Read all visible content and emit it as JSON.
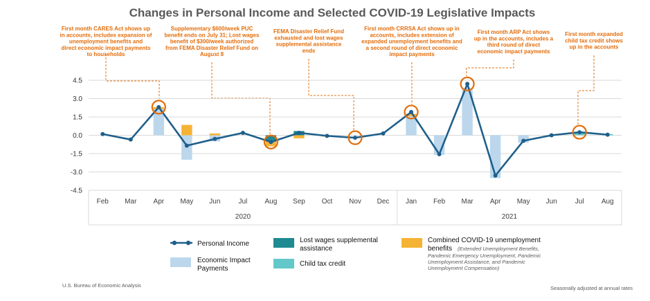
{
  "chart_data": {
    "type": "bar",
    "title": "Changes in Personal Income and Selected COVID-19 Legislative Impacts",
    "categories": [
      "Feb",
      "Mar",
      "Apr",
      "May",
      "Jun",
      "Jul",
      "Aug",
      "Sep",
      "Oct",
      "Nov",
      "Dec",
      "Jan",
      "Feb",
      "Mar",
      "Apr",
      "May",
      "Jun",
      "Jul",
      "Aug"
    ],
    "year_groups": [
      {
        "label": "2020",
        "start": 0,
        "end": 10
      },
      {
        "label": "2021",
        "start": 11,
        "end": 18
      }
    ],
    "ylim": [
      -4.5,
      4.5
    ],
    "yticks": [
      "4.5",
      "3.0",
      "1.5",
      "0.0",
      "-1.5",
      "-3.0",
      "-4.5"
    ],
    "ytick_values": [
      4.5,
      3.0,
      1.5,
      0.0,
      -1.5,
      -3.0,
      -4.5
    ],
    "series": [
      {
        "name": "Personal Income",
        "type": "line",
        "color": "#1f5f8b",
        "values": [
          0.1,
          -0.35,
          2.3,
          -0.85,
          -0.3,
          0.2,
          -0.55,
          0.2,
          -0.05,
          -0.2,
          0.15,
          1.9,
          -1.55,
          4.2,
          -3.3,
          -0.45,
          0.0,
          0.25,
          0.05
        ]
      },
      {
        "name": "Economic Impact Payments",
        "type": "bar",
        "color": "#bcd7ec",
        "values": [
          0,
          0,
          2.15,
          -2.0,
          -0.5,
          0,
          0,
          0,
          0,
          0,
          0,
          1.55,
          -1.6,
          3.85,
          -3.5,
          -0.6,
          0,
          0,
          0
        ]
      },
      {
        "name": "Lost wages supplemental assistance",
        "type": "bar",
        "color": "#1e8a91",
        "values": [
          0,
          0,
          0,
          0,
          0,
          0,
          -0.5,
          0.35,
          0,
          0,
          0,
          0,
          0,
          0,
          0,
          0,
          0,
          0,
          0
        ]
      },
      {
        "name": "Child tax credit",
        "type": "bar",
        "color": "#63c8c9",
        "values": [
          0,
          0,
          0,
          0,
          0,
          0,
          0,
          0,
          0,
          0,
          0,
          0,
          0,
          0,
          0,
          0,
          0,
          0.2,
          0.1
        ]
      },
      {
        "name": "Combined COVID-19 unemployment benefits",
        "type": "bar",
        "color": "#f5b335",
        "values": [
          0,
          0,
          0.15,
          0.85,
          0.15,
          0,
          -0.4,
          -0.25,
          -0.1,
          0,
          0,
          0.2,
          0,
          0,
          0,
          0,
          0,
          0,
          0
        ]
      }
    ],
    "highlighted_points": [
      2,
      6,
      9,
      11,
      13,
      17
    ],
    "annotations": [
      {
        "index": 0,
        "lines": [
          "First month CARES Act shows up",
          "in accounts, includes expansion of",
          "unemployment benefits and",
          "direct economic impact payments",
          "to households"
        ]
      },
      {
        "index": 1,
        "lines": [
          "Supplementary $600/week PUC",
          "benefit ends on July 31; Lost wages",
          "benefit of $300/week authorized",
          "from FEMA Disaster Relief Fund on",
          "August 8"
        ]
      },
      {
        "index": 2,
        "lines": [
          "FEMA Disaster Relief Fund",
          "exhausted and lost wages",
          "supplemental assistance",
          "ends"
        ]
      },
      {
        "index": 3,
        "lines": [
          "First month CRRSA Act shows up in",
          "accounts, includes extension of",
          "expanded unemployment benefits and",
          "a second round of direct economic",
          "impact payments"
        ]
      },
      {
        "index": 4,
        "lines": [
          "First month ARP Act shows",
          "up in the accounts, includes a",
          "third round of direct",
          "economic impact payments"
        ]
      },
      {
        "index": 5,
        "lines": [
          "First month expanded",
          "child tax credit shows",
          "up in the accounts"
        ]
      }
    ],
    "accent_color": "#e36c09"
  },
  "legend": {
    "personal_income": "Personal Income",
    "eip_line1": "Economic Impact",
    "eip_line2": "Payments",
    "lost_wages_line1": "Lost wages supplemental",
    "lost_wages_line2": "assistance",
    "child_tax": "Child tax credit",
    "combined_line1": "Combined COVID-19 unemployment",
    "combined_line2": "benefits",
    "combined_sub1": "(Extended Unemployment Benefits,",
    "combined_sub2": "Pandemic Emergency Unemployment, Pandemic",
    "combined_sub3": "Unemployment Assistance, and Pandemic",
    "combined_sub4": "Unemployment Compensation)"
  },
  "footer": {
    "source": "U.S. Bureau of Economic Analysis",
    "note": "Seasonally adjusted at annual rates"
  }
}
